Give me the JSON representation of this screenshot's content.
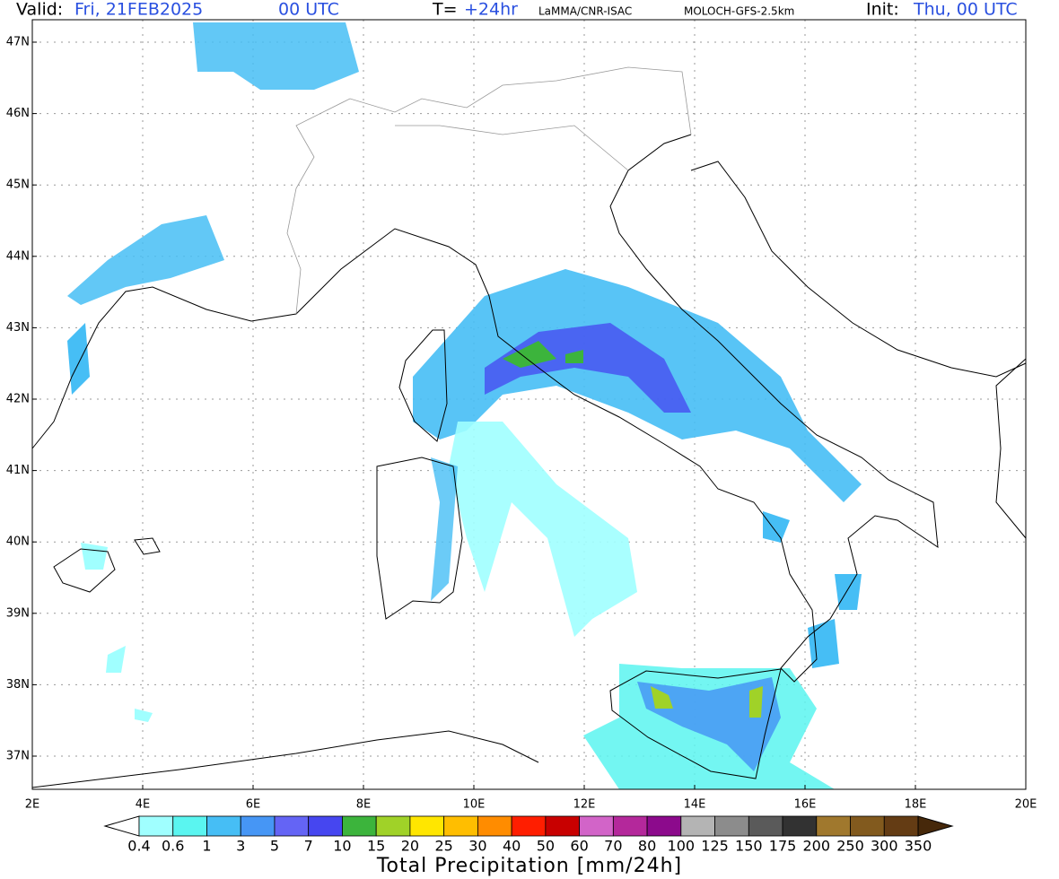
{
  "header": {
    "valid_label": "Valid:",
    "valid_date": "Fri, 21FEB2025",
    "valid_time": "00 UTC",
    "step_label": "T=",
    "step": "+24hr",
    "institution": "LaMMA/CNR-ISAC",
    "model": "MOLOCH-GFS-2.5km",
    "init_label": "Init:",
    "init": "Thu, 00 UTC"
  },
  "map": {
    "lat_labels": [
      "47N",
      "46N",
      "45N",
      "44N",
      "43N",
      "42N",
      "41N",
      "40N",
      "39N",
      "38N",
      "37N"
    ],
    "lon_labels": [
      "2E",
      "4E",
      "6E",
      "8E",
      "10E",
      "12E",
      "14E",
      "16E",
      "18E",
      "20E"
    ]
  },
  "colorbar": {
    "title": "Total Precipitation [mm/24h]",
    "labels": [
      0.4,
      0.6,
      1,
      3,
      5,
      7,
      10,
      15,
      20,
      25,
      30,
      40,
      50,
      60,
      70,
      80,
      100,
      125,
      150,
      175,
      200,
      250,
      300,
      350
    ],
    "under_color": "#ffffff",
    "colors": [
      "#a0ffff",
      "#5af5f0",
      "#46bef5",
      "#4696f5",
      "#6464f5",
      "#4646f0",
      "#3cb43c",
      "#a0d228",
      "#ffe600",
      "#ffbe00",
      "#ff8c00",
      "#ff1e00",
      "#c80000",
      "#d264c8",
      "#b4289b",
      "#8c0a8c",
      "#b4b4b4",
      "#8c8c8c",
      "#5a5a5a",
      "#323232",
      "#a0782d",
      "#825a1e",
      "#643c14"
    ],
    "over_color": "#46280a"
  }
}
